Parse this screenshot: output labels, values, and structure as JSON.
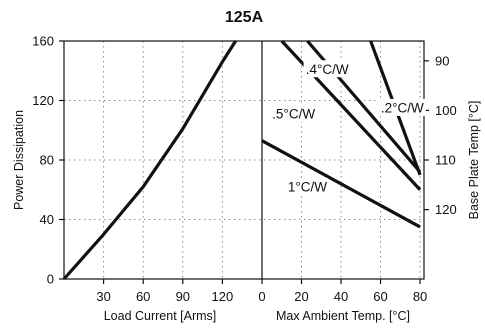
{
  "chart_data": {
    "title": "125A",
    "left_panel": {
      "type": "line",
      "xlabel": "Load Current  [Arms]",
      "ylabel": "Power Dissipation",
      "xlim": [
        0,
        150
      ],
      "ylim": [
        0,
        160
      ],
      "xticks": [
        30,
        60,
        90,
        120
      ],
      "yticks": [
        0,
        40,
        80,
        120,
        160
      ],
      "series": [
        {
          "points": [
            [
              0,
              0
            ],
            [
              30,
              30
            ],
            [
              60,
              62
            ],
            [
              90,
              101
            ],
            [
              120,
              146
            ],
            [
              130,
              160
            ]
          ]
        }
      ]
    },
    "right_panel": {
      "type": "line",
      "xlabel": "Max Ambient Temp. [°C]",
      "ylabel": "Base Plate Temp [°C]",
      "xlim": [
        0,
        82
      ],
      "xticks": [
        0,
        20,
        40,
        60,
        80
      ],
      "y2ticks": [
        90,
        100,
        110,
        120
      ],
      "y2_note": "Base plate temperature axis maps 80 W to 110 °C; 1 W = 0.3 °C, temperature increases downward",
      "series": [
        {
          "name": "1°C/W",
          "points": [
            [
              0,
              93
            ],
            [
              80,
              35
            ]
          ]
        },
        {
          "name": ".5°C/W",
          "points": [
            [
              10,
              160
            ],
            [
              80,
              60
            ]
          ]
        },
        {
          "name": ".4°C/W",
          "points": [
            [
              23,
              160
            ],
            [
              80,
              72
            ]
          ]
        },
        {
          "name": ".2°C/W",
          "points": [
            [
              55,
              160
            ],
            [
              80,
              70
            ]
          ]
        }
      ]
    },
    "grid": true
  }
}
